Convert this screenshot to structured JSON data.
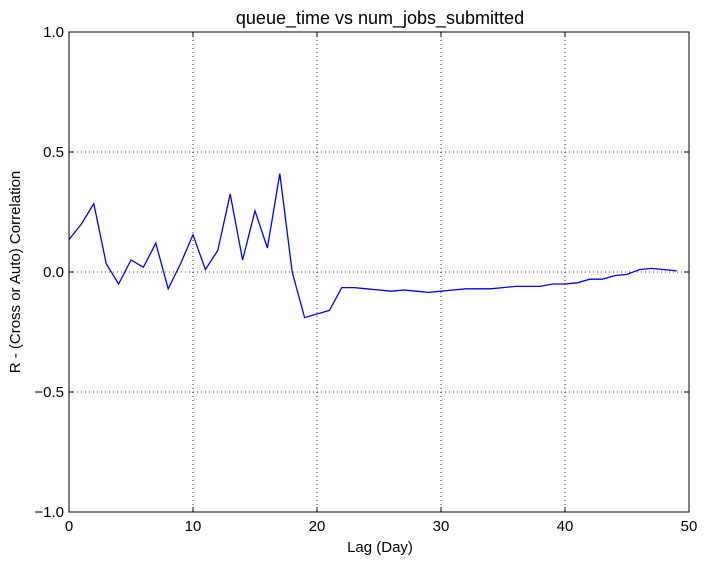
{
  "chart_data": {
    "type": "line",
    "title": "queue_time vs num_jobs_submitted",
    "xlabel": "Lag (Day)",
    "ylabel": "R - (Cross or Auto) Correlation",
    "xlim": [
      0,
      50
    ],
    "ylim": [
      -1.0,
      1.0
    ],
    "xticks": [
      0,
      10,
      20,
      30,
      40,
      50
    ],
    "xtick_labels": [
      "0",
      "10",
      "20",
      "30",
      "40",
      "50"
    ],
    "yticks": [
      -1.0,
      -0.5,
      0.0,
      0.5,
      1.0
    ],
    "ytick_labels": [
      "−1.0",
      "−0.5",
      "0.0",
      "0.5",
      "1.0"
    ],
    "grid": true,
    "line_color": "#0000ff",
    "series": [
      {
        "x": [
          0,
          1,
          2,
          3,
          4,
          5,
          6,
          7,
          8,
          9,
          10,
          11,
          12,
          13,
          14,
          15,
          16,
          17,
          18,
          19,
          20,
          21,
          22,
          23,
          24,
          25,
          26,
          27,
          28,
          29,
          30,
          31,
          32,
          33,
          34,
          35,
          36,
          37,
          38,
          39,
          40,
          41,
          42,
          43,
          44,
          45,
          46,
          47,
          48,
          49
        ],
        "values": [
          0.135,
          0.2,
          0.285,
          0.035,
          -0.05,
          0.05,
          0.02,
          0.12,
          -0.07,
          0.035,
          0.155,
          0.01,
          0.09,
          0.325,
          0.05,
          0.255,
          0.1,
          0.41,
          0.0,
          -0.19,
          -0.175,
          -0.16,
          -0.065,
          -0.065,
          -0.07,
          -0.075,
          -0.08,
          -0.075,
          -0.08,
          -0.085,
          -0.08,
          -0.075,
          -0.07,
          -0.07,
          -0.07,
          -0.065,
          -0.06,
          -0.06,
          -0.06,
          -0.05,
          -0.05,
          -0.045,
          -0.03,
          -0.03,
          -0.015,
          -0.01,
          0.01,
          0.015,
          0.01,
          0.005
        ]
      }
    ]
  }
}
